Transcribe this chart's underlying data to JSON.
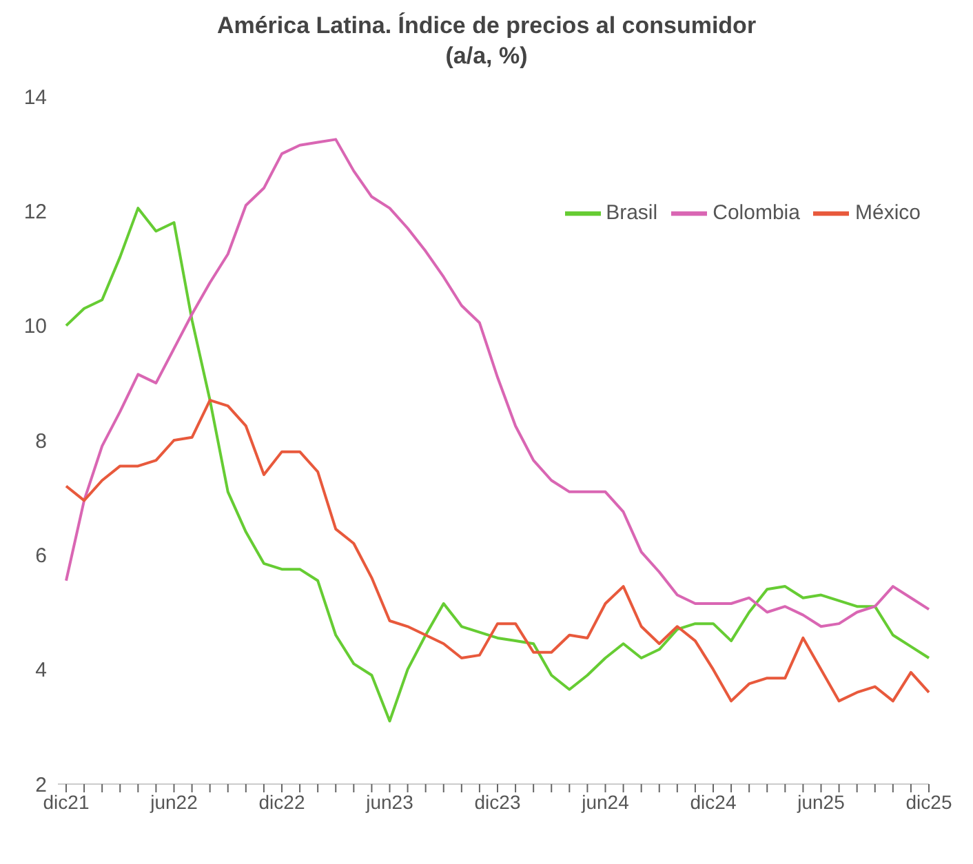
{
  "chart_data": {
    "type": "line",
    "title": "América Latina. Índice de precios al consumidor",
    "subtitle": "(a/a, %)",
    "categories": [
      "dic21",
      null,
      null,
      null,
      null,
      null,
      "jun22",
      null,
      null,
      null,
      null,
      null,
      "dic22",
      null,
      null,
      null,
      null,
      null,
      "jun23",
      null,
      null,
      null,
      null,
      null,
      "dic23",
      null,
      null,
      null,
      null,
      null,
      "jun24",
      null,
      null,
      null,
      null,
      null,
      "dic24",
      null,
      null,
      null,
      null,
      null,
      "jun25",
      null,
      null,
      null,
      null,
      null,
      "dic25"
    ],
    "series": [
      {
        "name": "Brasil",
        "color": "#66cc33",
        "values": [
          10.0,
          10.3,
          10.45,
          11.2,
          12.05,
          11.65,
          11.8,
          10.1,
          8.7,
          7.1,
          6.4,
          5.85,
          5.75,
          5.75,
          5.55,
          4.6,
          4.1,
          3.9,
          3.1,
          4.0,
          4.6,
          5.15,
          4.75,
          4.65,
          4.55,
          4.5,
          4.45,
          3.9,
          3.65,
          3.9,
          4.2,
          4.45,
          4.2,
          4.35,
          4.7,
          4.8,
          4.8,
          4.5,
          5.0,
          5.4,
          5.45,
          5.25,
          5.3,
          5.2,
          5.1,
          5.1,
          4.6,
          4.4,
          4.2
        ]
      },
      {
        "name": "Colombia",
        "color": "#d966b3",
        "values": [
          5.55,
          6.95,
          7.9,
          8.5,
          9.15,
          9.0,
          9.6,
          10.2,
          10.75,
          11.25,
          12.1,
          12.4,
          13.0,
          13.15,
          13.2,
          13.25,
          12.7,
          12.25,
          12.05,
          11.7,
          11.3,
          10.85,
          10.35,
          10.05,
          9.1,
          8.25,
          7.65,
          7.3,
          7.1,
          7.1,
          7.1,
          6.75,
          6.05,
          5.7,
          5.3,
          5.15,
          5.15,
          5.15,
          5.25,
          5.0,
          5.1,
          4.95,
          4.75,
          4.8,
          5.0,
          5.1,
          5.45,
          5.25,
          5.05
        ]
      },
      {
        "name": "México",
        "color": "#e8593c",
        "values": [
          7.2,
          6.95,
          7.3,
          7.55,
          7.55,
          7.65,
          8.0,
          8.05,
          8.7,
          8.6,
          8.25,
          7.4,
          7.8,
          7.8,
          7.45,
          6.45,
          6.2,
          5.6,
          4.85,
          4.75,
          4.6,
          4.45,
          4.2,
          4.25,
          4.8,
          4.8,
          4.3,
          4.3,
          4.6,
          4.55,
          5.15,
          5.45,
          4.75,
          4.45,
          4.75,
          4.5,
          4.0,
          3.45,
          3.75,
          3.85,
          3.85,
          4.55,
          4.0,
          3.45,
          3.6,
          3.7,
          3.45,
          3.95,
          3.6
        ]
      }
    ],
    "ylim": [
      2,
      14
    ],
    "yticks": [
      2,
      4,
      6,
      8,
      10,
      12,
      14
    ],
    "grid": false,
    "legend": "top right",
    "marker": "none",
    "line_style": "solid"
  }
}
